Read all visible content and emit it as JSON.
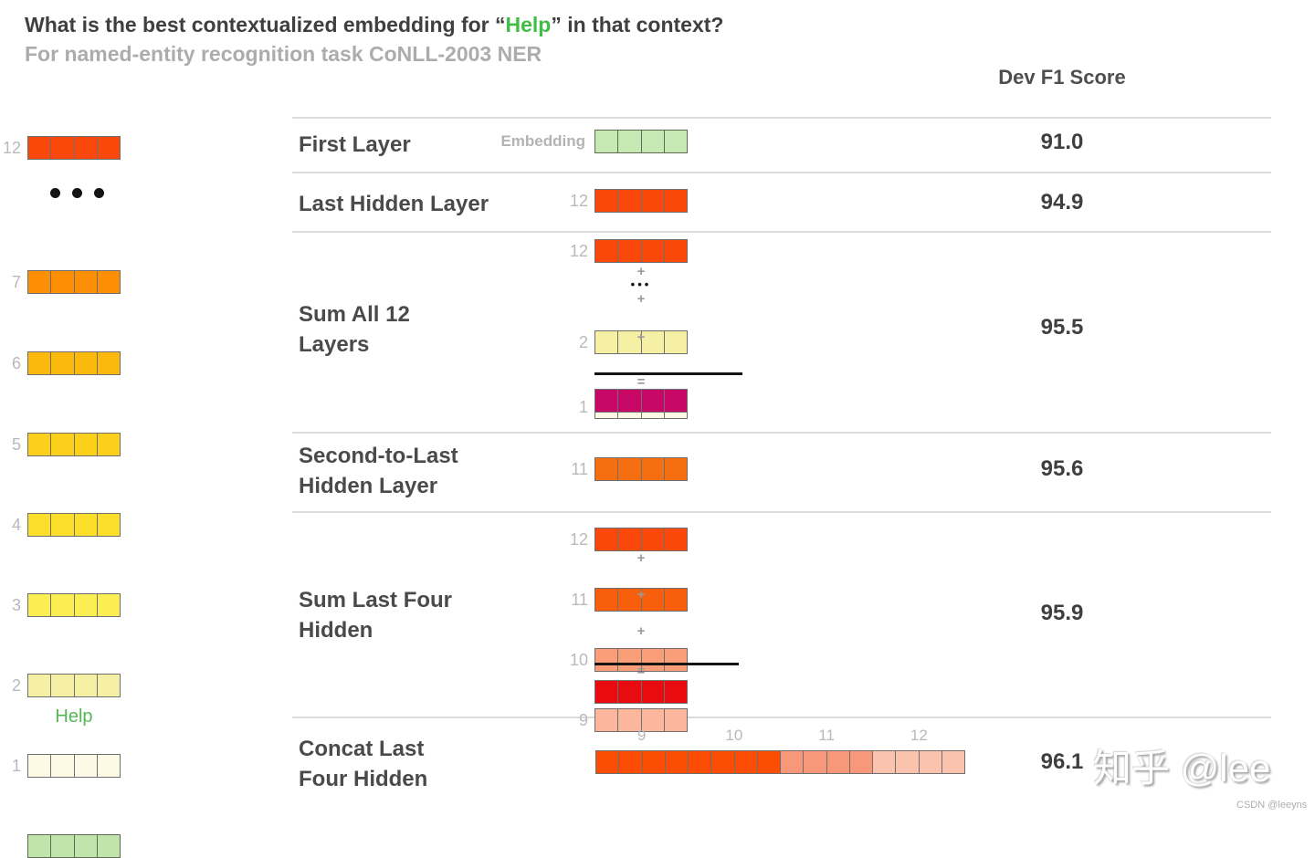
{
  "title": {
    "prefix": "What is the best contextualized embedding for “",
    "highlight": "Help",
    "suffix": "” in that context?"
  },
  "subtitle": "For named-entity recognition task CoNLL-2003 NER",
  "score_header": "Dev F1 Score",
  "ops": {
    "plus": "+",
    "equals": "=",
    "dots": "•••"
  },
  "colors": {
    "cell_border": "#6F6F6F",
    "green_border": "#5C6B52",
    "separator": "#DBDBDB",
    "title_text": "#3F3F3F",
    "subtitle_text": "#ACACAC",
    "green_highlight": "#3FBE44",
    "tag_gray": "#B9B9B9"
  },
  "left_stack": {
    "word": "Help",
    "layers": [
      {
        "tag": "12",
        "fill": "#FA470A"
      },
      {
        "dots": true
      },
      {
        "tag": "7",
        "fill": "#FC8F05"
      },
      {
        "tag": "6",
        "fill": "#FBB90E"
      },
      {
        "tag": "5",
        "fill": "#FCCF1B"
      },
      {
        "tag": "4",
        "fill": "#FCDF2A"
      },
      {
        "tag": "3",
        "fill": "#FAEE52"
      },
      {
        "tag": "2",
        "fill": "#F5F0A3"
      },
      {
        "tag": "1",
        "fill": "#FCFAE5"
      },
      {
        "tag": "",
        "fill": "#C0E4AC",
        "border": "#5C6B52"
      }
    ]
  },
  "rows": [
    {
      "label_lines": [
        "First Layer"
      ],
      "score": "91.0",
      "diagram": {
        "kind": "single",
        "tag": "Embedding",
        "tag_style": "text",
        "fill": "#C6E8B2",
        "border": "#5C6B52"
      }
    },
    {
      "label_lines": [
        "Last Hidden Layer"
      ],
      "score": "94.9",
      "diagram": {
        "kind": "single",
        "tag": "12",
        "fill": "#FA470A"
      }
    },
    {
      "label_lines": [
        "Sum All 12",
        "Layers"
      ],
      "score": "95.5",
      "diagram": {
        "kind": "sum",
        "items": [
          {
            "tag": "12",
            "fill": "#FA470A"
          },
          {
            "dots": true
          },
          {
            "tag": "2",
            "fill": "#F5F0A3"
          },
          {
            "tag": "1",
            "fill": "#FCFAE5"
          }
        ],
        "result_fill": "#C70867"
      }
    },
    {
      "label_lines": [
        "Second-to-Last",
        "Hidden Layer"
      ],
      "score": "95.6",
      "diagram": {
        "kind": "single",
        "tag": "11",
        "fill": "#F56E10"
      }
    },
    {
      "label_lines": [
        "Sum Last Four",
        "Hidden"
      ],
      "score": "95.9",
      "diagram": {
        "kind": "sum",
        "items": [
          {
            "tag": "12",
            "fill": "#FA470A"
          },
          {
            "tag": "11",
            "fill": "#F75F0D"
          },
          {
            "tag": "10",
            "fill": "#F99E78"
          },
          {
            "tag": "9",
            "fill": "#FBB69C"
          }
        ],
        "result_fill": "#E80B10"
      }
    },
    {
      "label_lines": [
        "Concat Last",
        "Four Hidden"
      ],
      "score": "96.1",
      "diagram": {
        "kind": "concat",
        "groups": [
          {
            "tag": "9",
            "fill": "#FB4D03"
          },
          {
            "tag": "10",
            "fill": "#FB4D03"
          },
          {
            "tag": "11",
            "fill": "#F9977A"
          },
          {
            "tag": "12",
            "fill": "#FBC3AE"
          }
        ]
      }
    }
  ],
  "watermark": {
    "main": "知乎 @lee",
    "sub": "CSDN @leeyns"
  }
}
